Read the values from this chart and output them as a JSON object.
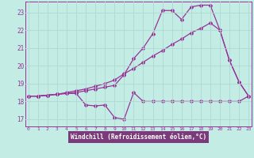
{
  "xlabel": "Windchill (Refroidissement éolien,°C)",
  "bg_color": "#c2ece4",
  "xlabel_bg": "#7b3b7b",
  "line_color": "#993399",
  "grid_color": "#b0d8d0",
  "x_ticks": [
    0,
    1,
    2,
    3,
    4,
    5,
    6,
    7,
    8,
    9,
    10,
    11,
    12,
    13,
    14,
    15,
    16,
    17,
    18,
    19,
    20,
    21,
    22,
    23
  ],
  "y_ticks": [
    17,
    18,
    19,
    20,
    21,
    22,
    23
  ],
  "xlim": [
    -0.3,
    23.3
  ],
  "ylim": [
    16.6,
    23.6
  ],
  "line1_x": [
    0,
    1,
    2,
    3,
    4,
    5,
    6,
    7,
    8,
    9,
    10,
    11,
    12,
    13,
    14,
    15,
    16,
    17,
    18,
    19,
    20,
    21,
    22,
    23
  ],
  "line1_y": [
    18.3,
    18.3,
    18.35,
    18.4,
    18.45,
    18.45,
    17.8,
    17.75,
    17.8,
    17.1,
    17.0,
    18.5,
    18.0,
    18.0,
    18.0,
    18.0,
    18.0,
    18.0,
    18.0,
    18.0,
    18.0,
    18.0,
    18.0,
    18.3
  ],
  "line2_x": [
    0,
    1,
    2,
    3,
    4,
    5,
    6,
    7,
    8,
    9,
    10,
    11,
    12,
    13,
    14,
    15,
    16,
    17,
    18,
    19,
    20,
    21,
    22,
    23
  ],
  "line2_y": [
    18.3,
    18.3,
    18.35,
    18.4,
    18.45,
    18.5,
    18.6,
    18.7,
    18.8,
    18.9,
    19.5,
    20.4,
    21.0,
    21.8,
    23.1,
    23.1,
    22.6,
    23.3,
    23.4,
    23.4,
    22.0,
    20.3,
    19.1,
    18.3
  ],
  "line3_x": [
    0,
    1,
    2,
    3,
    4,
    5,
    6,
    7,
    8,
    9,
    10,
    11,
    12,
    13,
    14,
    15,
    16,
    17,
    18,
    19,
    20,
    21,
    22,
    23
  ],
  "line3_y": [
    18.3,
    18.3,
    18.35,
    18.4,
    18.5,
    18.6,
    18.7,
    18.85,
    19.0,
    19.2,
    19.55,
    19.85,
    20.2,
    20.55,
    20.85,
    21.2,
    21.5,
    21.85,
    22.1,
    22.4,
    22.0,
    20.3,
    19.1,
    18.3
  ]
}
